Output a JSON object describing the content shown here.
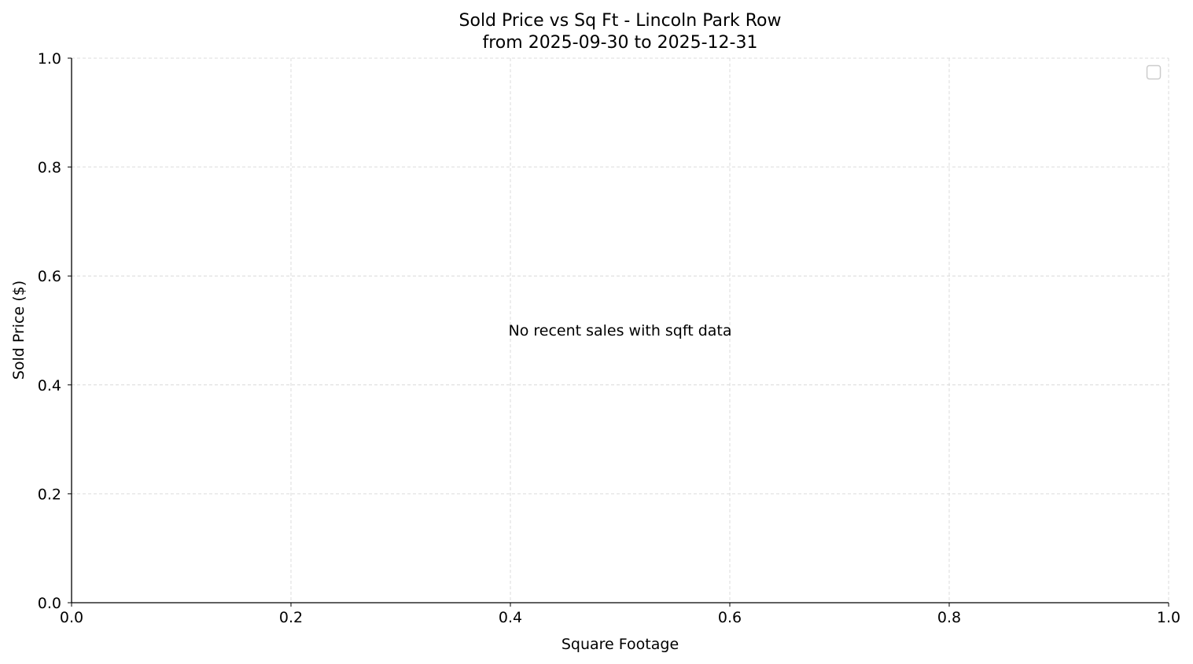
{
  "chart_data": {
    "type": "scatter",
    "title": "Sold Price vs Sq Ft - Lincoln Park Row",
    "subtitle": "from 2025-09-30 to 2025-12-31",
    "xlabel": "Square Footage",
    "ylabel": "Sold Price ($)",
    "xlim": [
      0,
      1
    ],
    "ylim": [
      0,
      1
    ],
    "xticks": [
      "0.0",
      "0.2",
      "0.4",
      "0.6",
      "0.8",
      "1.0"
    ],
    "yticks": [
      "0.0",
      "0.2",
      "0.4",
      "0.6",
      "0.8",
      "1.0"
    ],
    "grid": true,
    "legend": {
      "placement": "top-right",
      "entries": []
    },
    "annotation": "No recent sales with sqft data",
    "series": [],
    "colors": {
      "grid": "#d3d3d3",
      "axes": "#000000",
      "legend_border": "#cccccc"
    }
  }
}
